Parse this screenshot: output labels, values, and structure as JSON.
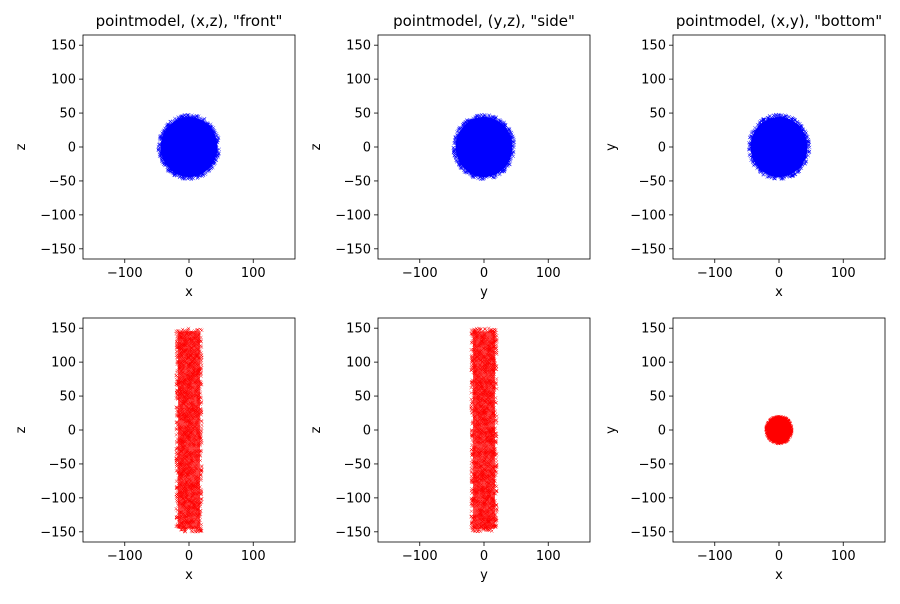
{
  "figure": {
    "background": "#ffffff"
  },
  "chart_data": [
    {
      "type": "scatter",
      "title": "pointmodel, (x,z), \"front\"",
      "xlabel": "x",
      "ylabel": "z",
      "xlim": [
        -165,
        165
      ],
      "ylim": [
        -165,
        165
      ],
      "xticks": [
        -100,
        0,
        100
      ],
      "yticks": [
        -150,
        -100,
        -50,
        0,
        50,
        100,
        150
      ],
      "grid": false,
      "marker_color": "#0000ff",
      "shape": {
        "kind": "disk",
        "cx": 0,
        "cy": 0,
        "r": 48
      }
    },
    {
      "type": "scatter",
      "title": "pointmodel, (y,z), \"side\"",
      "xlabel": "y",
      "ylabel": "z",
      "xlim": [
        -165,
        165
      ],
      "ylim": [
        -165,
        165
      ],
      "xticks": [
        -100,
        0,
        100
      ],
      "yticks": [
        -150,
        -100,
        -50,
        0,
        50,
        100,
        150
      ],
      "grid": false,
      "marker_color": "#0000ff",
      "shape": {
        "kind": "disk",
        "cx": 0,
        "cy": 0,
        "r": 48
      }
    },
    {
      "type": "scatter",
      "title": "pointmodel, (x,y), \"bottom\"",
      "xlabel": "x",
      "ylabel": "y",
      "xlim": [
        -165,
        165
      ],
      "ylim": [
        -165,
        165
      ],
      "xticks": [
        -100,
        0,
        100
      ],
      "yticks": [
        -150,
        -100,
        -50,
        0,
        50,
        100,
        150
      ],
      "grid": false,
      "marker_color": "#0000ff",
      "shape": {
        "kind": "disk",
        "cx": 0,
        "cy": 0,
        "r": 48
      }
    },
    {
      "type": "scatter",
      "title": "",
      "xlabel": "x",
      "ylabel": "z",
      "xlim": [
        -165,
        165
      ],
      "ylim": [
        -165,
        165
      ],
      "xticks": [
        -100,
        0,
        100
      ],
      "yticks": [
        -150,
        -100,
        -50,
        0,
        50,
        100,
        150
      ],
      "grid": false,
      "marker_color": "#ff0000",
      "shape": {
        "kind": "rect",
        "x": [
          -20,
          20
        ],
        "y": [
          -150,
          150
        ]
      }
    },
    {
      "type": "scatter",
      "title": "",
      "xlabel": "y",
      "ylabel": "z",
      "xlim": [
        -165,
        165
      ],
      "ylim": [
        -165,
        165
      ],
      "xticks": [
        -100,
        0,
        100
      ],
      "yticks": [
        -150,
        -100,
        -50,
        0,
        50,
        100,
        150
      ],
      "grid": false,
      "marker_color": "#ff0000",
      "shape": {
        "kind": "rect",
        "x": [
          -20,
          20
        ],
        "y": [
          -150,
          150
        ]
      }
    },
    {
      "type": "scatter",
      "title": "",
      "xlabel": "x",
      "ylabel": "y",
      "xlim": [
        -165,
        165
      ],
      "ylim": [
        -165,
        165
      ],
      "xticks": [
        -100,
        0,
        100
      ],
      "yticks": [
        -150,
        -100,
        -50,
        0,
        50,
        100,
        150
      ],
      "grid": false,
      "marker_color": "#ff0000",
      "shape": {
        "kind": "disk",
        "cx": 0,
        "cy": 0,
        "r": 20
      }
    }
  ]
}
